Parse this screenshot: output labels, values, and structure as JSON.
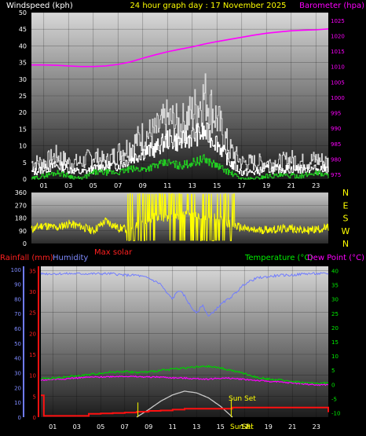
{
  "header": {
    "left": "Windspeed (kph)",
    "center": "24 hour graph day : 17 November 2025",
    "right": "Barometer (hpa)"
  },
  "colors": {
    "wind_avg": "#ffffff",
    "wind_gust": "#d6d6d6",
    "wind_green": "#22cc22",
    "barometer": "#ff00ff",
    "direction": "#ffff00",
    "temperature": "#00cc00",
    "dewpoint": "#ff00ff",
    "humidity": "#6f7bff",
    "rainfall": "#ff1010",
    "solar": "#c8c8c8",
    "sun_marker": "#dddd00"
  },
  "chart_data": [
    {
      "type": "line",
      "title": "24 hour graph day : 17 November 2025",
      "ylabel": "Windspeed (kph)",
      "y2label": "Barometer (hpa)",
      "x_ticks": [
        "01",
        "03",
        "05",
        "07",
        "09",
        "11",
        "13",
        "15",
        "17",
        "19",
        "21",
        "23"
      ],
      "x_range": [
        0,
        24
      ],
      "y_ticks": [
        0,
        5,
        10,
        15,
        20,
        25,
        30,
        35,
        40,
        45,
        50
      ],
      "ylim": [
        0,
        50
      ],
      "y2_ticks": [
        975,
        980,
        985,
        990,
        995,
        1000,
        1005,
        1010,
        1015,
        1020,
        1025
      ],
      "y2lim": [
        973.5,
        1027.5
      ],
      "grid": true,
      "series": [
        {
          "name": "Barometer",
          "axis": "y2",
          "x": [
            0,
            1,
            2,
            3,
            4,
            5,
            6,
            7,
            8,
            9,
            10,
            11,
            12,
            13,
            14,
            15,
            16,
            17,
            18,
            19,
            20,
            21,
            22,
            23,
            24
          ],
          "values": [
            1010.5,
            1010.5,
            1010.4,
            1010.2,
            1010.0,
            1010.0,
            1010.2,
            1010.7,
            1011.5,
            1012.7,
            1013.8,
            1014.8,
            1015.6,
            1016.4,
            1017.3,
            1018.1,
            1018.8,
            1019.5,
            1020.2,
            1020.8,
            1021.2,
            1021.6,
            1021.8,
            1021.9,
            1022.2
          ]
        },
        {
          "name": "Wind gust",
          "axis": "y",
          "x": [
            0,
            1,
            2,
            3,
            4,
            5,
            6,
            7,
            8,
            9,
            10,
            11,
            12,
            13,
            14,
            15,
            16,
            17,
            18,
            19,
            20,
            21,
            22,
            23,
            24
          ],
          "values": [
            5,
            5,
            7,
            5,
            5,
            7,
            5,
            8,
            10,
            13,
            14,
            18,
            16,
            20,
            25,
            18,
            9,
            5,
            5,
            5,
            5,
            6,
            5,
            6,
            5
          ]
        },
        {
          "name": "Wind average",
          "axis": "y",
          "x": [
            0,
            1,
            2,
            3,
            4,
            5,
            6,
            7,
            8,
            9,
            10,
            11,
            12,
            13,
            14,
            15,
            16,
            17,
            18,
            19,
            20,
            21,
            22,
            23,
            24
          ],
          "values": [
            2,
            3,
            4,
            3,
            2,
            3,
            4,
            4,
            6,
            8,
            9,
            12,
            11,
            13,
            14,
            11,
            5,
            2,
            2,
            3,
            3,
            3,
            3,
            3,
            3
          ]
        },
        {
          "name": "Wind minimum",
          "axis": "y",
          "x": [
            0,
            1,
            2,
            3,
            4,
            5,
            6,
            7,
            8,
            9,
            10,
            11,
            12,
            13,
            14,
            15,
            16,
            17,
            18,
            19,
            20,
            21,
            22,
            23,
            24
          ],
          "values": [
            0,
            1,
            2,
            1,
            0,
            2,
            2,
            2,
            3,
            3,
            4,
            5,
            4,
            5,
            6,
            4,
            2,
            0,
            0,
            1,
            1,
            1,
            1,
            2,
            1
          ]
        }
      ]
    },
    {
      "type": "line",
      "y_ticks": [
        0,
        90,
        180,
        270,
        360
      ],
      "ylim": [
        0,
        360
      ],
      "y2_ticks": [
        "N",
        "W",
        "S",
        "E",
        "N"
      ],
      "x_range": [
        0,
        24
      ],
      "series": [
        {
          "name": "Wind direction",
          "x": [
            0,
            1,
            2,
            3,
            4,
            5,
            6,
            7,
            8,
            9,
            10,
            11,
            12,
            13,
            14,
            15,
            16,
            17,
            18,
            19,
            20,
            21,
            22,
            23,
            24
          ],
          "values": [
            100,
            130,
            110,
            140,
            120,
            90,
            160,
            110,
            100,
            150,
            190,
            180,
            200,
            210,
            170,
            190,
            140,
            110,
            90,
            100,
            100,
            110,
            90,
            100,
            110
          ]
        }
      ]
    },
    {
      "type": "line",
      "label_rain": "Rainfall (mm)",
      "label_humidity": "Humidity",
      "label_solar": "Max solar",
      "label_temp": "Temperature (°C)",
      "label_dew": "Dew Point (°C)",
      "annotation": "Sun Set",
      "bottom_markers": [
        "Sun Ri",
        "Set"
      ],
      "x_ticks": [
        "01",
        "03",
        "05",
        "07",
        "09",
        "11",
        "13",
        "15",
        "17",
        "19",
        "21",
        "23"
      ],
      "x_range": [
        0,
        24
      ],
      "y_rain_ticks": [
        0,
        5,
        10,
        15,
        20,
        25,
        30,
        35
      ],
      "y_hum_ticks": [
        0,
        10,
        20,
        30,
        40,
        50,
        60,
        70,
        80,
        90,
        100
      ],
      "y_temp_ticks": [
        -10,
        -5,
        0,
        5,
        10,
        15,
        20,
        25,
        30,
        35,
        40
      ],
      "ylim_rain": [
        0,
        36
      ],
      "ylim_hum": [
        0,
        102
      ],
      "ylim_temp": [
        -11.5,
        41.5
      ],
      "grid": true,
      "series": [
        {
          "name": "Humidity",
          "axis": "hum",
          "x": [
            0,
            1,
            2,
            3,
            4,
            5,
            6,
            7,
            8,
            9,
            10,
            10.5,
            11,
            11.5,
            12,
            12.5,
            13,
            13.5,
            14,
            14.5,
            15,
            16,
            17,
            18,
            19,
            20,
            21,
            22,
            23,
            24
          ],
          "values": [
            97,
            97,
            97,
            97,
            97,
            97,
            97,
            96,
            96,
            94,
            90,
            84,
            80,
            86,
            82,
            75,
            70,
            76,
            68,
            72,
            76,
            82,
            90,
            94,
            95,
            96,
            96,
            97,
            97,
            97
          ]
        },
        {
          "name": "Temperature",
          "axis": "temp",
          "x": [
            0,
            1,
            2,
            3,
            4,
            5,
            6,
            7,
            8,
            9,
            10,
            11,
            12,
            13,
            14,
            15,
            16,
            17,
            18,
            19,
            20,
            21,
            22,
            23,
            24
          ],
          "values": [
            2,
            2.2,
            2.6,
            3,
            3.4,
            4,
            4.4,
            4.6,
            4.2,
            4.4,
            4.9,
            5.4,
            5.8,
            6.1,
            6.3,
            5.8,
            4.8,
            3.8,
            2.5,
            1.9,
            1.5,
            1.1,
            0.6,
            0.4,
            0.5
          ]
        },
        {
          "name": "Dew Point",
          "axis": "temp",
          "x": [
            0,
            1,
            2,
            3,
            4,
            5,
            6,
            7,
            8,
            9,
            10,
            11,
            12,
            13,
            14,
            15,
            16,
            17,
            18,
            19,
            20,
            21,
            22,
            23,
            24
          ],
          "values": [
            1.5,
            1.8,
            2,
            2.3,
            2.5,
            2.6,
            2.8,
            2.9,
            2.7,
            2.6,
            2.6,
            2.3,
            2.2,
            2.0,
            1.9,
            2.2,
            2.1,
            1.8,
            1.4,
            1.1,
            0.8,
            0.5,
            0.2,
            -0.2,
            -0.1
          ]
        },
        {
          "name": "Max solar",
          "axis": "rain",
          "x": [
            8,
            9,
            10,
            11,
            12,
            13,
            14,
            15,
            16
          ],
          "values": [
            0,
            1.8,
            3.8,
            5.3,
            6.2,
            5.8,
            4.6,
            2.6,
            0
          ]
        },
        {
          "name": "Rainfall",
          "axis": "rain",
          "x": [
            0,
            0.2,
            0.25,
            3,
            4,
            5,
            6,
            7,
            8,
            9,
            10,
            11,
            12,
            13,
            14,
            15,
            16,
            17,
            18,
            19,
            20,
            21,
            22,
            23,
            23.8,
            24
          ],
          "values": [
            5.2,
            5.2,
            0.3,
            0.3,
            0.8,
            0.9,
            1.0,
            1.1,
            1.3,
            1.5,
            1.6,
            1.8,
            2.0,
            2.0,
            2.0,
            2.0,
            2.3,
            2.3,
            2.3,
            2.3,
            2.3,
            2.3,
            2.3,
            2.3,
            2.3,
            1.2
          ]
        }
      ]
    }
  ]
}
